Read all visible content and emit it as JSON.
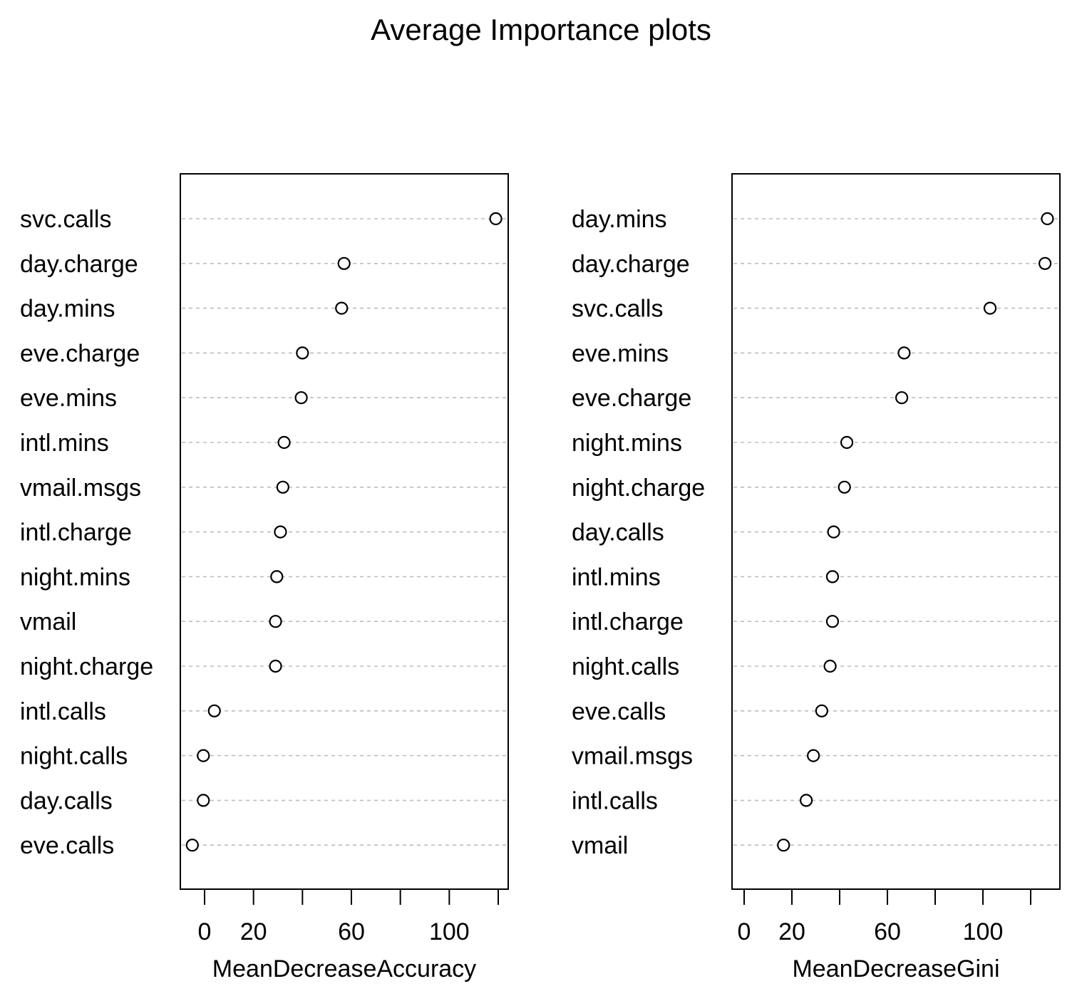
{
  "title": "Average Importance plots",
  "chart_data": [
    {
      "type": "scatter",
      "subtype": "dotchart",
      "xlabel": "MeanDecreaseAccuracy",
      "xlim": [
        -10,
        125
      ],
      "xticks": [
        0,
        20,
        40,
        60,
        80,
        100,
        120
      ],
      "xtick_labels": [
        "0",
        "20",
        "",
        "60",
        "",
        "100",
        ""
      ],
      "grid": "dashed horizontal per row",
      "categories": [
        "svc.calls",
        "day.charge",
        "day.mins",
        "eve.charge",
        "eve.mins",
        "intl.mins",
        "vmail.msgs",
        "intl.charge",
        "night.mins",
        "vmail",
        "night.charge",
        "intl.calls",
        "night.calls",
        "day.calls",
        "eve.calls"
      ],
      "values": [
        119,
        57,
        56,
        40,
        39.5,
        32.5,
        32,
        31,
        29.5,
        29,
        29,
        4,
        -0.5,
        -0.5,
        -5
      ]
    },
    {
      "type": "scatter",
      "subtype": "dotchart",
      "xlabel": "MeanDecreaseGini",
      "xlim": [
        -5,
        132
      ],
      "xticks": [
        0,
        20,
        40,
        60,
        80,
        100,
        120
      ],
      "xtick_labels": [
        "0",
        "20",
        "",
        "60",
        "",
        "100",
        ""
      ],
      "grid": "dashed horizontal per row",
      "categories": [
        "day.mins",
        "day.charge",
        "svc.calls",
        "eve.mins",
        "eve.charge",
        "night.mins",
        "night.charge",
        "day.calls",
        "intl.mins",
        "intl.charge",
        "night.calls",
        "eve.calls",
        "vmail.msgs",
        "intl.calls",
        "vmail"
      ],
      "values": [
        127,
        126,
        103,
        67,
        66,
        43,
        42,
        37.5,
        37,
        37,
        36,
        32.5,
        29,
        26,
        16.5
      ]
    }
  ]
}
